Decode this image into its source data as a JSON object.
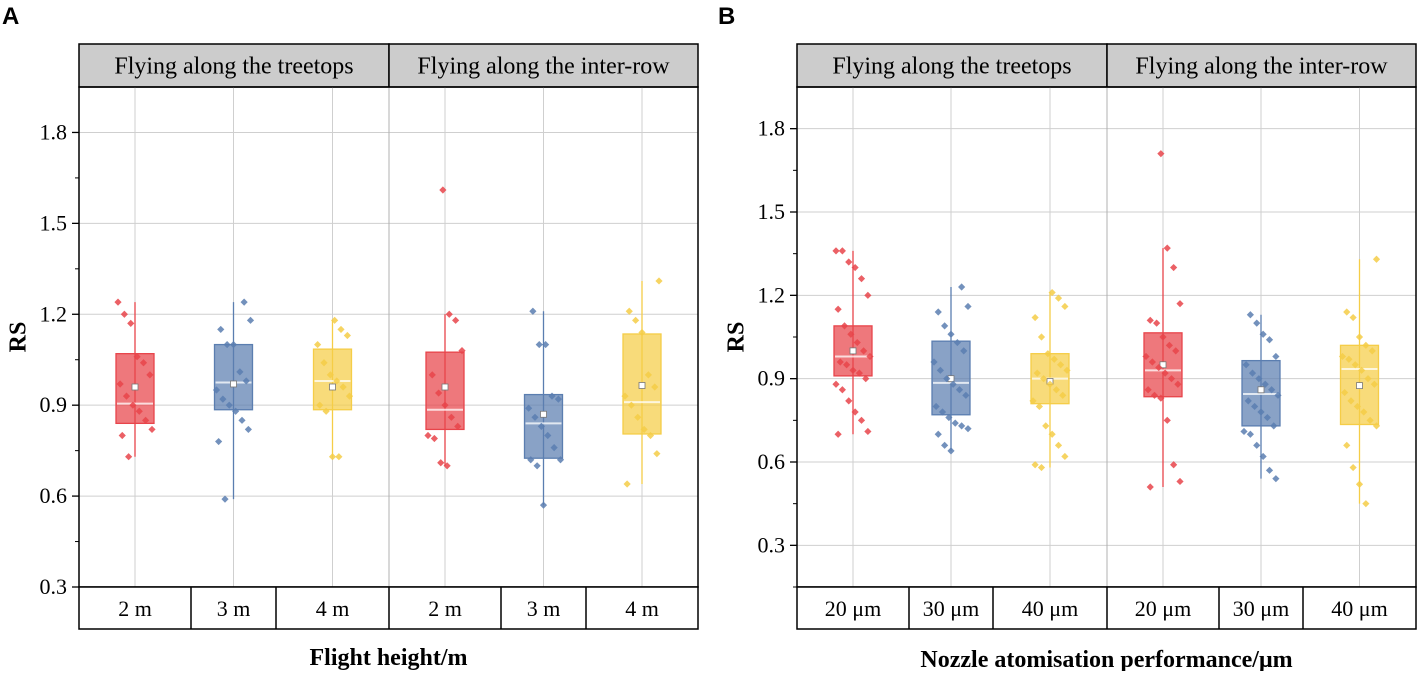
{
  "colors": {
    "red": "#e8444a",
    "blue": "#5b7eb0",
    "yellow": "#f5cd47",
    "strip_bg": "#cccccc",
    "grid": "#cfcfcf"
  },
  "chart_data": [
    {
      "panel_label": "A",
      "type": "box",
      "ylabel": "RS",
      "xlabel": "Flight height/m",
      "ylim": [
        0.3,
        1.95
      ],
      "yticks": [
        0.3,
        0.6,
        0.9,
        1.2,
        1.5,
        1.8
      ],
      "ytick_labels": [
        "0.3",
        "0.6",
        "0.9",
        "1.2",
        "1.5",
        "1.8"
      ],
      "grid": true,
      "facets": [
        {
          "label": "Flying along the treetops",
          "groups": [
            {
              "category": "2 m",
              "color": "red",
              "q1": 0.84,
              "median": 0.905,
              "q3": 1.07,
              "whisker_low": 0.73,
              "whisker_high": 1.24,
              "mean": 0.96,
              "points": [
                1.24,
                1.2,
                1.17,
                1.06,
                1.04,
                1.0,
                0.97,
                0.93,
                0.9,
                0.88,
                0.85,
                0.82,
                0.8,
                0.73
              ]
            },
            {
              "category": "3 m",
              "color": "blue",
              "q1": 0.885,
              "median": 0.975,
              "q3": 1.1,
              "whisker_low": 0.59,
              "whisker_high": 1.24,
              "mean": 0.97,
              "points": [
                1.24,
                1.18,
                1.15,
                1.1,
                1.1,
                1.01,
                0.98,
                0.95,
                0.92,
                0.9,
                0.88,
                0.85,
                0.82,
                0.78,
                0.59
              ]
            },
            {
              "category": "4 m",
              "color": "yellow",
              "q1": 0.885,
              "median": 0.98,
              "q3": 1.085,
              "whisker_low": 0.73,
              "whisker_high": 1.18,
              "mean": 0.96,
              "points": [
                1.18,
                1.15,
                1.13,
                1.1,
                1.04,
                1.0,
                0.98,
                0.96,
                0.93,
                0.9,
                0.88,
                0.73,
                0.73
              ]
            }
          ]
        },
        {
          "label": "Flying along the inter-row",
          "groups": [
            {
              "category": "2 m",
              "color": "red",
              "q1": 0.82,
              "median": 0.885,
              "q3": 1.075,
              "whisker_low": 0.7,
              "whisker_high": 1.2,
              "mean": 0.96,
              "points": [
                1.61,
                1.2,
                1.18,
                1.08,
                1.0,
                0.94,
                0.9,
                0.86,
                0.83,
                0.8,
                0.79,
                0.71,
                0.7
              ]
            },
            {
              "category": "3 m",
              "color": "blue",
              "q1": 0.725,
              "median": 0.84,
              "q3": 0.935,
              "whisker_low": 0.57,
              "whisker_high": 1.21,
              "mean": 0.87,
              "points": [
                1.21,
                1.1,
                1.1,
                0.93,
                0.92,
                0.89,
                0.86,
                0.83,
                0.8,
                0.76,
                0.72,
                0.72,
                0.7,
                0.57
              ]
            },
            {
              "category": "4 m",
              "color": "yellow",
              "q1": 0.805,
              "median": 0.91,
              "q3": 1.135,
              "whisker_low": 0.64,
              "whisker_high": 1.31,
              "mean": 0.965,
              "points": [
                1.31,
                1.21,
                1.18,
                1.14,
                1.0,
                0.96,
                0.93,
                0.9,
                0.86,
                0.82,
                0.8,
                0.74,
                0.64
              ]
            }
          ]
        }
      ]
    },
    {
      "panel_label": "B",
      "type": "box",
      "ylabel": "RS",
      "xlabel": "Nozzle atomisation performance/μm",
      "ylim": [
        0.15,
        1.95
      ],
      "yticks": [
        0.3,
        0.6,
        0.9,
        1.2,
        1.5,
        1.8
      ],
      "ytick_labels": [
        "0.3",
        "0.6",
        "0.9",
        "1.2",
        "1.5",
        "1.8"
      ],
      "grid": true,
      "facets": [
        {
          "label": "Flying along the treetops",
          "groups": [
            {
              "category": "20 μm",
              "color": "red",
              "q1": 0.91,
              "median": 0.98,
              "q3": 1.09,
              "whisker_low": 0.7,
              "whisker_high": 1.36,
              "mean": 1.0,
              "points": [
                1.36,
                1.36,
                1.32,
                1.3,
                1.26,
                1.2,
                1.15,
                1.09,
                1.06,
                1.03,
                1.0,
                0.98,
                0.96,
                0.95,
                0.93,
                0.92,
                0.9,
                0.88,
                0.86,
                0.82,
                0.78,
                0.75,
                0.71,
                0.7
              ]
            },
            {
              "category": "30 μm",
              "color": "blue",
              "q1": 0.77,
              "median": 0.885,
              "q3": 1.035,
              "whisker_low": 0.64,
              "whisker_high": 1.23,
              "mean": 0.9,
              "points": [
                1.23,
                1.16,
                1.14,
                1.09,
                1.06,
                1.03,
                1.0,
                0.96,
                0.93,
                0.9,
                0.88,
                0.86,
                0.84,
                0.8,
                0.78,
                0.76,
                0.74,
                0.73,
                0.72,
                0.7,
                0.66,
                0.64
              ]
            },
            {
              "category": "40 μm",
              "color": "yellow",
              "q1": 0.81,
              "median": 0.9,
              "q3": 0.99,
              "whisker_low": 0.58,
              "whisker_high": 1.21,
              "mean": 0.89,
              "points": [
                1.21,
                1.19,
                1.16,
                1.12,
                1.05,
                0.99,
                0.97,
                0.95,
                0.93,
                0.92,
                0.9,
                0.88,
                0.86,
                0.84,
                0.82,
                0.8,
                0.73,
                0.7,
                0.66,
                0.62,
                0.59,
                0.58
              ]
            }
          ]
        },
        {
          "label": "Flying along the inter-row",
          "groups": [
            {
              "category": "20 μm",
              "color": "red",
              "q1": 0.835,
              "median": 0.93,
              "q3": 1.065,
              "whisker_low": 0.51,
              "whisker_high": 1.37,
              "mean": 0.95,
              "points": [
                1.71,
                1.37,
                1.3,
                1.17,
                1.11,
                1.1,
                1.05,
                1.02,
                1.0,
                0.98,
                0.96,
                0.94,
                0.92,
                0.9,
                0.88,
                0.86,
                0.84,
                0.83,
                0.75,
                0.59,
                0.53,
                0.51
              ]
            },
            {
              "category": "30 μm",
              "color": "blue",
              "q1": 0.73,
              "median": 0.845,
              "q3": 0.965,
              "whisker_low": 0.54,
              "whisker_high": 1.13,
              "mean": 0.86,
              "points": [
                1.13,
                1.1,
                1.06,
                1.04,
                0.98,
                0.95,
                0.92,
                0.9,
                0.88,
                0.86,
                0.84,
                0.82,
                0.8,
                0.78,
                0.76,
                0.73,
                0.71,
                0.7,
                0.66,
                0.62,
                0.57,
                0.54
              ]
            },
            {
              "category": "40 μm",
              "color": "yellow",
              "q1": 0.735,
              "median": 0.935,
              "q3": 1.02,
              "whisker_low": 0.45,
              "whisker_high": 1.33,
              "mean": 0.875,
              "points": [
                1.33,
                1.14,
                1.12,
                1.05,
                1.02,
                1.0,
                0.98,
                0.97,
                0.95,
                0.93,
                0.9,
                0.88,
                0.85,
                0.82,
                0.8,
                0.78,
                0.75,
                0.73,
                0.66,
                0.58,
                0.52,
                0.45
              ]
            }
          ]
        }
      ]
    }
  ]
}
